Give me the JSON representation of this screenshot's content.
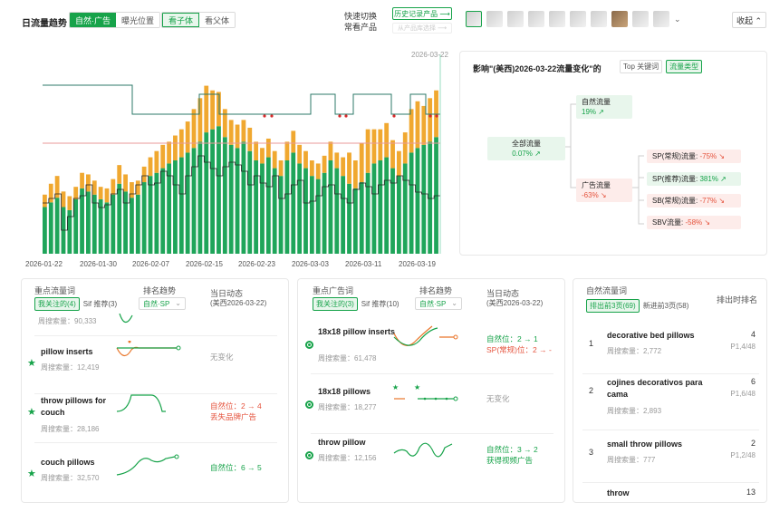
{
  "header": {
    "title": "日流量趋势",
    "seg1": [
      "自然·广告",
      "曝光位置"
    ],
    "seg2": [
      "看子体",
      "看父体"
    ],
    "quick_line1": "快速切换",
    "quick_line2": "常看产品",
    "history_btn": "历史记录产品 ⟶",
    "sub_btn": "从产品库选择 ⟶",
    "collapse": "收起 ⌃",
    "chevron": "⌄"
  },
  "chart_data": {
    "type": "bar",
    "title": "",
    "highlight_date": "2026-03-22",
    "x_ticks": [
      "2026-01-22",
      "2026-01-30",
      "2026-02-07",
      "2026-02-15",
      "2026-02-23",
      "2026-03-03",
      "2026-03-11",
      "2026-03-19"
    ],
    "note": "stacked bars: natural (green) + ad (orange); black step line rank; teal step line",
    "series": [
      {
        "values": [
          30,
          33,
          36,
          30,
          28,
          35,
          42,
          40,
          38,
          35,
          33,
          38,
          45,
          40,
          36,
          38,
          46,
          50,
          52,
          55,
          58,
          60,
          62,
          65,
          68,
          72,
          78,
          80,
          82,
          75,
          70,
          68,
          72,
          66,
          60,
          58,
          62,
          55,
          50,
          60,
          65,
          58,
          55,
          50,
          48,
          52,
          60,
          55,
          50,
          45,
          42,
          46,
          52,
          58,
          60,
          62,
          55,
          50,
          58,
          65,
          68,
          70,
          72,
          75
        ]
      },
      {
        "values": [
          8,
          12,
          14,
          10,
          9,
          8,
          10,
          11,
          9,
          8,
          9,
          10,
          12,
          11,
          10,
          9,
          10,
          12,
          14,
          15,
          14,
          16,
          18,
          20,
          25,
          28,
          30,
          25,
          22,
          18,
          16,
          15,
          14,
          15,
          12,
          10,
          12,
          11,
          10,
          12,
          14,
          12,
          11,
          10,
          10,
          11,
          12,
          10,
          12,
          20,
          18,
          25,
          28,
          22,
          20,
          22,
          18,
          16,
          20,
          28,
          30,
          25,
          28,
          30
        ]
      }
    ]
  },
  "impact": {
    "title_prefix": "影响\"(美西)2026-03-22流量变化\"的",
    "tab_top": "Top 关键词",
    "tab_type": "流量类型",
    "total_label": "全部流量",
    "total_val": "0.07%",
    "natural_label": "自然流量",
    "natural_val": "19%",
    "ad_label": "广告流量",
    "ad_val": "-63%",
    "items": [
      {
        "label": "SP(常规)流量:",
        "val": "-75%",
        "up": false
      },
      {
        "label": "SP(推荐)流量:",
        "val": "381%",
        "up": true
      },
      {
        "label": "SB(常规)流量:",
        "val": "-77%",
        "up": false
      },
      {
        "label": "SBV流量:",
        "val": "-58%",
        "up": false
      }
    ],
    "arrow_up": "↗",
    "arrow_down": "↘"
  },
  "p1": {
    "title": "重点流量词",
    "tab_on": "我关注的(4)",
    "tab_off": "Sif 推荐(3)",
    "col_trend": "排名趋势",
    "col_dyn": "当日动态",
    "col_dyn_sub": "(美西2026-03-22)",
    "select": "自然·SP",
    "first_vol": "周搜索量：90,333",
    "rows": [
      {
        "kw": "pillow inserts",
        "vol": "周搜索量：12,419",
        "dyn": "无变化",
        "dyn2": ""
      },
      {
        "kw": "throw pillows for couch",
        "vol": "周搜索量：28,186",
        "dyn": "自然位：2 → 4",
        "dyn2": "丢失品牌广告"
      },
      {
        "kw": "couch pillows",
        "vol": "周搜索量：32,570",
        "dyn": "自然位：6 → 5",
        "dyn2": ""
      }
    ]
  },
  "p2": {
    "title": "重点广告词",
    "tab_on": "我关注的(3)",
    "tab_off": "Sif 推荐(10)",
    "col_trend": "排名趋势",
    "col_dyn": "当日动态",
    "col_dyn_sub": "(美西2026-03-22)",
    "select": "自然·SP",
    "rows": [
      {
        "kw": "18x18 pillow inserts",
        "vol": "周搜索量：61,478",
        "dyn": "自然位：2 → 1",
        "dyn2": "SP(常规)位：2 → -"
      },
      {
        "kw": "18x18 pillows",
        "vol": "周搜索量：18,277",
        "dyn": "无变化",
        "dyn2": ""
      },
      {
        "kw": "throw pillow",
        "vol": "周搜索量：12,156",
        "dyn": "自然位：3 → 2",
        "dyn2": "获得视频广告"
      }
    ]
  },
  "p3": {
    "title": "自然流量词",
    "col": "排出时排名",
    "tab_on": "排出前3页(69)",
    "tab_off": "新进前3页(58)",
    "rows": [
      {
        "n": "1",
        "kw": "decorative bed pillows",
        "vol": "周搜索量：2,772",
        "rank": "4",
        "page": "P1,4/48"
      },
      {
        "n": "2",
        "kw": "cojines decorativos para cama",
        "vol": "周搜索量：2,893",
        "rank": "6",
        "page": "P1,6/48"
      },
      {
        "n": "3",
        "kw": "small throw pillows",
        "vol": "周搜索量：777",
        "rank": "2",
        "page": "P1,2/48"
      },
      {
        "n": "",
        "kw": "throw",
        "vol": "",
        "rank": "13",
        "page": ""
      }
    ]
  }
}
